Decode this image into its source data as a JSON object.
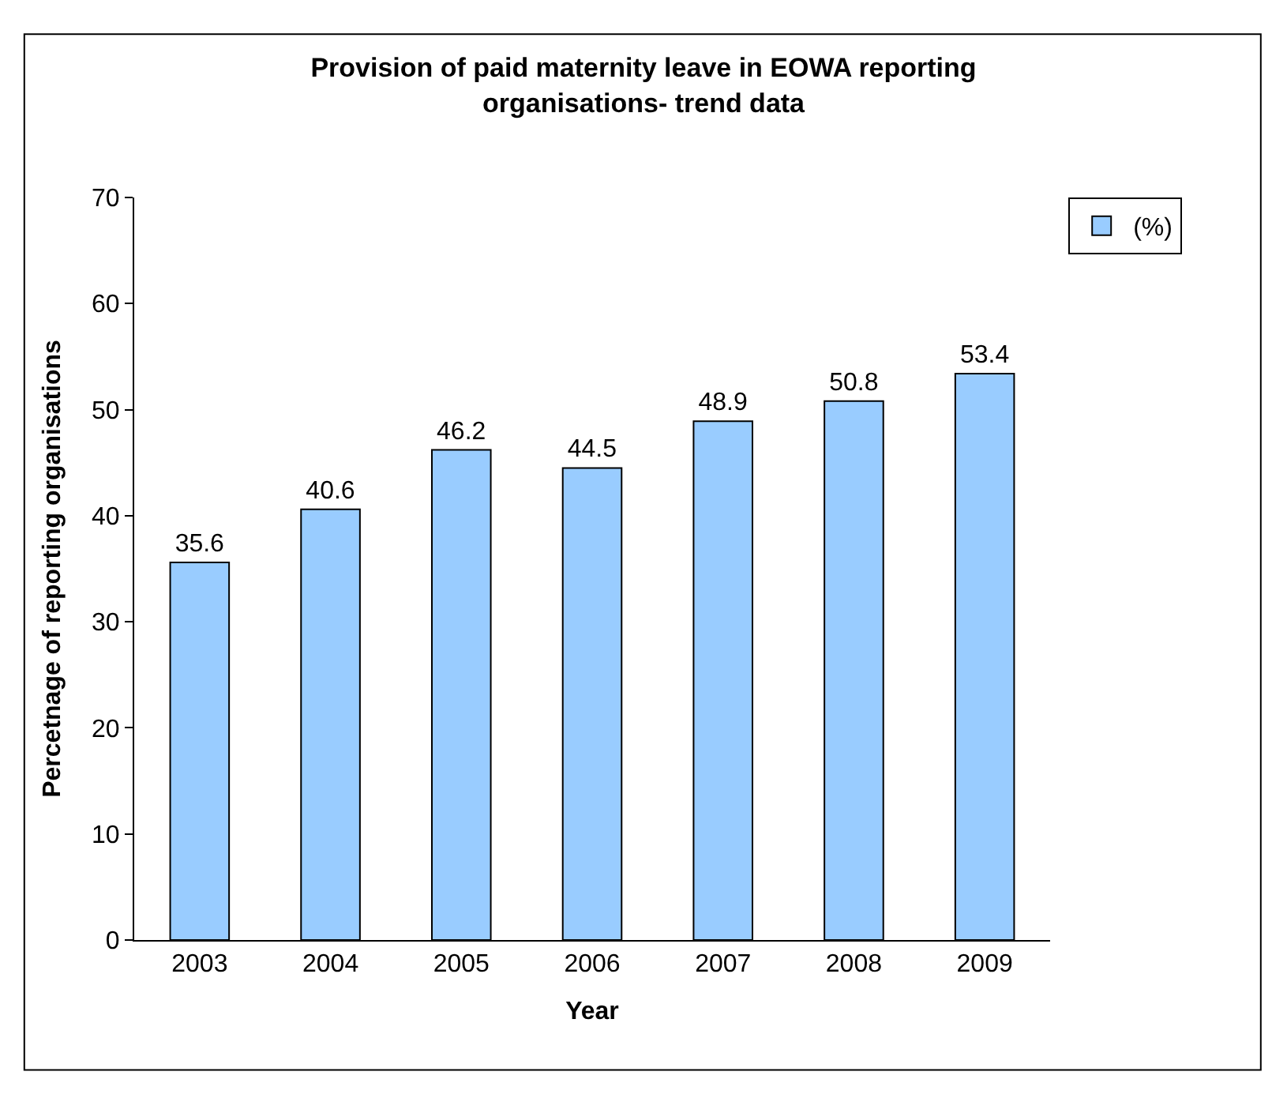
{
  "chart_data": {
    "type": "bar",
    "title": "Provision of paid maternity leave in EOWA reporting organisations- trend data",
    "xlabel": "Year",
    "ylabel": "Percetnage of reporting organisations",
    "categories": [
      "2003",
      "2004",
      "2005",
      "2006",
      "2007",
      "2008",
      "2009"
    ],
    "series": [
      {
        "name": "(%)",
        "color": "#99ccff",
        "values": [
          35.6,
          40.6,
          46.2,
          44.5,
          48.9,
          50.8,
          53.4
        ]
      }
    ],
    "ylim": [
      0,
      70
    ],
    "yticks": [
      0,
      10,
      20,
      30,
      40,
      50,
      60,
      70
    ],
    "legend": "top right",
    "data_labels": true
  }
}
